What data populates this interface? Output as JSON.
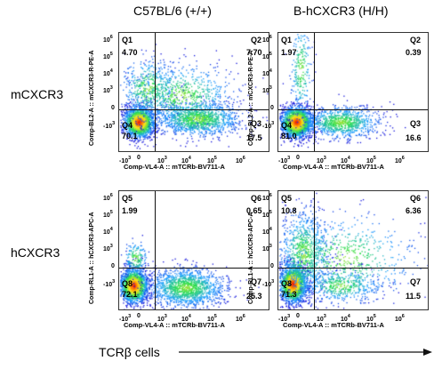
{
  "columns": [
    "C57BL/6 (+/+)",
    "B-hCXCR3 (H/H)"
  ],
  "rows": [
    "mCXCR3",
    "hCXCR3"
  ],
  "footer": {
    "label": "TCRβ cells"
  },
  "chart_data": [
    {
      "type": "scatter",
      "row": "mCXCR3",
      "column": "C57BL/6 (+/+)",
      "xlabel": "Comp-VL4-A :: mTCRb-BV711-A",
      "ylabel": "Comp-BL2-A :: mCXCR3-R-PE-A",
      "y_ticks": [
        "10⁶",
        "10⁵",
        "10⁴",
        "10³",
        "0",
        "-10³"
      ],
      "x_ticks": [
        "-10³",
        "0",
        "10³",
        "10⁴",
        "10⁵",
        "10⁶"
      ],
      "quadrants": [
        {
          "name": "Q1",
          "value": "4.70"
        },
        {
          "name": "Q2",
          "value": "7.70"
        },
        {
          "name": "Q3",
          "value": "17.5"
        },
        {
          "name": "Q4",
          "value": "70.1"
        }
      ]
    },
    {
      "type": "scatter",
      "row": "mCXCR3",
      "column": "B-hCXCR3 (H/H)",
      "xlabel": "Comp-VL4-A :: mTCRb-BV711-A",
      "ylabel": "Comp-BL2-A :: mCXCR3-R-PE-A",
      "y_ticks": [
        "10⁶",
        "10⁵",
        "10⁴",
        "10³",
        "0",
        "-10³"
      ],
      "x_ticks": [
        "-10³",
        "0",
        "10³",
        "10⁴",
        "10⁵",
        "10⁶"
      ],
      "quadrants": [
        {
          "name": "Q1",
          "value": "1.97"
        },
        {
          "name": "Q2",
          "value": "0.39"
        },
        {
          "name": "Q3",
          "value": "16.6"
        },
        {
          "name": "Q4",
          "value": "81.0"
        }
      ]
    },
    {
      "type": "scatter",
      "row": "hCXCR3",
      "column": "C57BL/6 (+/+)",
      "xlabel": "Comp-VL4-A :: mTCRb-BV711-A",
      "ylabel": "Comp-RL1-A :: hCXCR3-APC-A",
      "y_ticks": [
        "10⁶",
        "10⁵",
        "10⁴",
        "10³",
        "0",
        "-10³"
      ],
      "x_ticks": [
        "-10³",
        "0",
        "10³",
        "10⁴",
        "10⁵",
        "10⁶"
      ],
      "quadrants": [
        {
          "name": "Q5",
          "value": "1.99"
        },
        {
          "name": "Q6",
          "value": "0.65"
        },
        {
          "name": "Q7",
          "value": "25.3"
        },
        {
          "name": "Q8",
          "value": "72.1"
        }
      ]
    },
    {
      "type": "scatter",
      "row": "hCXCR3",
      "column": "B-hCXCR3 (H/H)",
      "xlabel": "Comp-VL4-A :: mTCRb-BV711-A",
      "ylabel": "Comp-RL1-A :: hCXCR3-APC-A",
      "y_ticks": [
        "10⁶",
        "10⁵",
        "10⁴",
        "10³",
        "0",
        "-10³"
      ],
      "x_ticks": [
        "-10³",
        "0",
        "10³",
        "10⁴",
        "10⁵",
        "10⁶"
      ],
      "quadrants": [
        {
          "name": "Q5",
          "value": "10.8"
        },
        {
          "name": "Q6",
          "value": "6.36"
        },
        {
          "name": "Q7",
          "value": "11.5"
        },
        {
          "name": "Q8",
          "value": "71.3"
        }
      ]
    }
  ]
}
